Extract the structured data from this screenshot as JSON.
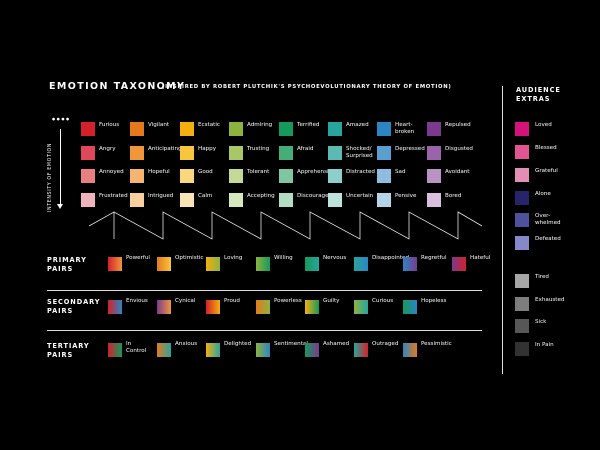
{
  "header": {
    "title": "EMOTION TAXONOMY",
    "subtitle": "(INSPIRED BY ROBERT PLUTCHIK'S PSYCHOEVOLUTIONARY THEORY OF EMOTION)"
  },
  "intensity": {
    "label": "INTENSITY OF EMOTION",
    "marks": "● ● ● ●"
  },
  "emotion_grid": {
    "columns": [
      {
        "items": [
          {
            "label": "Furious",
            "color": "#d4202a"
          },
          {
            "label": "Angry",
            "color": "#e0475a"
          },
          {
            "label": "Annoyed",
            "color": "#ea7f82"
          },
          {
            "label": "Frustrated",
            "color": "#efb3bd"
          }
        ]
      },
      {
        "items": [
          {
            "label": "Vigilant",
            "color": "#e5791d"
          },
          {
            "label": "Anticipating",
            "color": "#f0973c"
          },
          {
            "label": "Hopeful",
            "color": "#f5b56f"
          },
          {
            "label": "Intrigued",
            "color": "#f8cfa1"
          }
        ]
      },
      {
        "items": [
          {
            "label": "Ecstatic",
            "color": "#f4b00e"
          },
          {
            "label": "Happy",
            "color": "#f8c63e"
          },
          {
            "label": "Good",
            "color": "#f9d77d"
          },
          {
            "label": "Calm",
            "color": "#f8e3b5"
          }
        ]
      },
      {
        "items": [
          {
            "label": "Admiring",
            "color": "#8db33f"
          },
          {
            "label": "Trusting",
            "color": "#a9c768"
          },
          {
            "label": "Tolerant",
            "color": "#c3d995"
          },
          {
            "label": "Accepting",
            "color": "#d6e6bd"
          }
        ]
      },
      {
        "items": [
          {
            "label": "Terrified",
            "color": "#139a5c"
          },
          {
            "label": "Afraid",
            "color": "#44ad79"
          },
          {
            "label": "Apprehensive",
            "color": "#80c6a0"
          },
          {
            "label": "Discouraged",
            "color": "#b2dcc3"
          }
        ]
      },
      {
        "items": [
          {
            "label": "Amazed",
            "color": "#27a59d"
          },
          {
            "label": "Shocked/\nSurprised",
            "color": "#5cbab2"
          },
          {
            "label": "Distracted",
            "color": "#8ed0c9"
          },
          {
            "label": "Uncertain",
            "color": "#bde2dc"
          }
        ]
      },
      {
        "items": [
          {
            "label": "Heart-\nbroken",
            "color": "#2c85c3"
          },
          {
            "label": "Depressed",
            "color": "#5b9fd0"
          },
          {
            "label": "Sad",
            "color": "#8dbde0"
          },
          {
            "label": "Pensive",
            "color": "#b5d4ea"
          }
        ]
      },
      {
        "items": [
          {
            "label": "Repulsed",
            "color": "#7b3a8e"
          },
          {
            "label": "Disgusted",
            "color": "#9a64aa"
          },
          {
            "label": "Avoidant",
            "color": "#b993c4"
          },
          {
            "label": "Bored",
            "color": "#d6c0dd"
          }
        ]
      }
    ]
  },
  "primary_pairs": {
    "label": "PRIMARY\nPAIRS",
    "items": [
      {
        "label": "Powerful",
        "from": "#d4202a",
        "to": "#f0973c"
      },
      {
        "label": "Optimistic",
        "from": "#e5791d",
        "to": "#f8c63e"
      },
      {
        "label": "Loving",
        "from": "#f4b00e",
        "to": "#8db33f"
      },
      {
        "label": "Willing",
        "from": "#8db33f",
        "to": "#139a5c"
      },
      {
        "label": "Nervous",
        "from": "#139a5c",
        "to": "#27a59d"
      },
      {
        "label": "Disappointed",
        "from": "#27a59d",
        "to": "#2c85c3"
      },
      {
        "label": "Regretful",
        "from": "#2c85c3",
        "to": "#7b3a8e"
      },
      {
        "label": "Hateful",
        "from": "#7b3a8e",
        "to": "#d4202a"
      }
    ]
  },
  "secondary_pairs": {
    "label": "SECONDARY\nPAIRS",
    "items": [
      {
        "label": "Envious",
        "from": "#d4202a",
        "to": "#2c85c3"
      },
      {
        "label": "Cynical",
        "from": "#7b3a8e",
        "to": "#f0973c"
      },
      {
        "label": "Proud",
        "from": "#d4202a",
        "to": "#f4b00e"
      },
      {
        "label": "Powerless",
        "from": "#e5791d",
        "to": "#8db33f"
      },
      {
        "label": "Guilty",
        "from": "#f4b00e",
        "to": "#139a5c"
      },
      {
        "label": "Curious",
        "from": "#8db33f",
        "to": "#27a59d"
      },
      {
        "label": "Hopeless",
        "from": "#139a5c",
        "to": "#2c85c3"
      }
    ]
  },
  "tertiary_pairs": {
    "label": "TERTIARY\nPAIRS",
    "items": [
      {
        "label": "In\nControl",
        "from": "#d4202a",
        "to": "#139a5c"
      },
      {
        "label": "Anxious",
        "from": "#e5791d",
        "to": "#27a59d"
      },
      {
        "label": "Delighted",
        "from": "#f4b00e",
        "to": "#27a59d"
      },
      {
        "label": "Sentimental",
        "from": "#8db33f",
        "to": "#2c85c3"
      },
      {
        "label": "Ashamed",
        "from": "#139a5c",
        "to": "#7b3a8e"
      },
      {
        "label": "Outraged",
        "from": "#27a59d",
        "to": "#d4202a"
      },
      {
        "label": "Pessimistic",
        "from": "#2c85c3",
        "to": "#e5791d"
      }
    ]
  },
  "audience_extras": {
    "heading": "AUDIENCE\nEXTRAS",
    "items": [
      {
        "label": "Loved",
        "color": "#d4137a"
      },
      {
        "label": "Blessed",
        "color": "#e05592"
      },
      {
        "label": "Grateful",
        "color": "#e48db5"
      },
      {
        "label": "Alone",
        "color": "#27246b"
      },
      {
        "label": "Over-\nwhelmed",
        "color": "#4e519b"
      },
      {
        "label": "Defeated",
        "color": "#8589c9"
      },
      {
        "label": "Tired",
        "color": "#a6a6a6"
      },
      {
        "label": "Exhausted",
        "color": "#7d7d7d"
      },
      {
        "label": "Sick",
        "color": "#575757"
      },
      {
        "label": "In Pain",
        "color": "#323232"
      }
    ]
  }
}
